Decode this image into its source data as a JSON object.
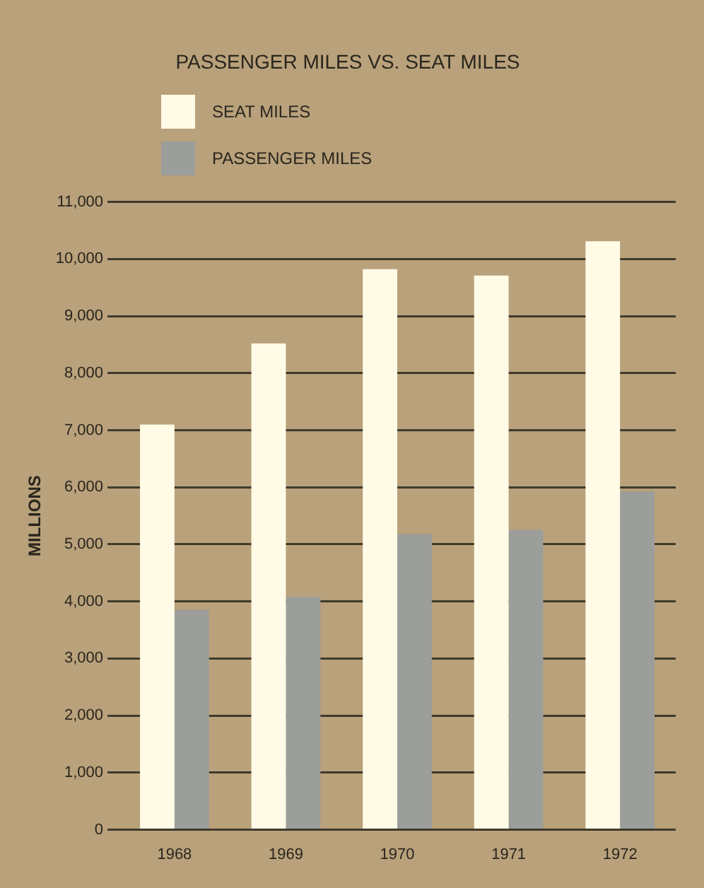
{
  "chart_data": {
    "type": "bar",
    "title": "PASSENGER MILES VS. SEAT MILES",
    "ylabel": "MILLIONS",
    "categories": [
      "1968",
      "1969",
      "1970",
      "1971",
      "1972"
    ],
    "series": [
      {
        "name": "SEAT MILES",
        "color": "#fffbe6",
        "values": [
          7100,
          8520,
          9820,
          9710,
          10310
        ]
      },
      {
        "name": "PASSENGER MILES",
        "color": "#9b9e9a",
        "values": [
          3850,
          4080,
          5180,
          5250,
          5930
        ]
      }
    ],
    "ylim": [
      0,
      11000
    ],
    "yticks": [
      0,
      {
        "value": 1000,
        "label": "1,000"
      },
      {
        "value": 2000,
        "label": "2,000"
      },
      {
        "value": 3000,
        "label": "3,000"
      },
      {
        "value": 4000,
        "label": "4,000"
      },
      {
        "value": 5000,
        "label": "5,000"
      },
      {
        "value": 6000,
        "label": "6,000"
      },
      {
        "value": 7000,
        "label": "7,000"
      },
      {
        "value": 8000,
        "label": "8,000"
      },
      {
        "value": 9000,
        "label": "9,000"
      },
      {
        "value": 10000,
        "label": "10,000"
      },
      {
        "value": 11000,
        "label": "11,000"
      }
    ],
    "grid": "y",
    "legend": "top left"
  }
}
